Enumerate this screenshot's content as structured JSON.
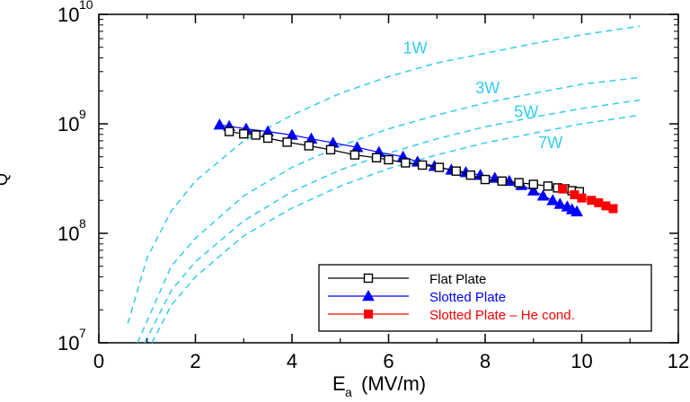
{
  "chart_data": {
    "type": "scatter",
    "title": "",
    "xlabel": "E",
    "xlabel_sub": "a",
    "xlabel_units": "(MV/m)",
    "ylabel": "Q",
    "xlim": [
      0,
      12
    ],
    "ylim_log10": [
      7,
      10
    ],
    "y_scale": "log",
    "x_ticks": [
      0,
      2,
      4,
      6,
      8,
      10,
      12
    ],
    "x_tick_labels": [
      "0",
      "2",
      "4",
      "6",
      "8",
      "10",
      "12"
    ],
    "y_ticks_log10": [
      7,
      8,
      9,
      10
    ],
    "y_tick_base": "10",
    "y_tick_exponents": [
      "7",
      "8",
      "9",
      "10"
    ],
    "grid": false,
    "legend_position": "bottom-right",
    "series": [
      {
        "name": "Flat Plate",
        "color": "#000000",
        "marker": "open-square",
        "x": [
          2.7,
          3.0,
          3.25,
          3.5,
          3.9,
          4.35,
          4.8,
          5.3,
          5.75,
          6.0,
          6.35,
          6.7,
          7.05,
          7.4,
          7.7,
          8.0,
          8.35,
          8.7,
          9.0,
          9.3,
          9.5,
          9.65,
          9.8,
          9.95
        ],
        "y": [
          850000000.0,
          810000000.0,
          790000000.0,
          740000000.0,
          680000000.0,
          630000000.0,
          580000000.0,
          520000000.0,
          490000000.0,
          470000000.0,
          440000000.0,
          420000000.0,
          400000000.0,
          370000000.0,
          340000000.0,
          310000000.0,
          300000000.0,
          290000000.0,
          280000000.0,
          270000000.0,
          260000000.0,
          255000000.0,
          245000000.0,
          240000000.0
        ]
      },
      {
        "name": "Slotted Plate",
        "color": "#0000ff",
        "marker": "filled-triangle",
        "x": [
          2.5,
          2.7,
          3.05,
          3.5,
          4.0,
          4.4,
          4.85,
          5.35,
          5.8,
          6.3,
          6.6,
          6.95,
          7.3,
          7.6,
          7.9,
          8.2,
          8.5,
          8.75,
          9.0,
          9.2,
          9.4,
          9.55,
          9.7,
          9.8,
          9.9
        ],
        "y": [
          980000000.0,
          950000000.0,
          900000000.0,
          850000000.0,
          790000000.0,
          730000000.0,
          670000000.0,
          610000000.0,
          550000000.0,
          500000000.0,
          450000000.0,
          410000000.0,
          380000000.0,
          360000000.0,
          340000000.0,
          320000000.0,
          300000000.0,
          275000000.0,
          245000000.0,
          220000000.0,
          200000000.0,
          185000000.0,
          175000000.0,
          165000000.0,
          158000000.0
        ]
      },
      {
        "name": "Slotted Plate – He cond.",
        "color": "#ff0000",
        "marker": "filled-square",
        "x": [
          9.6,
          9.85,
          10.0,
          10.2,
          10.35,
          10.5,
          10.65
        ],
        "y": [
          255000000.0,
          225000000.0,
          210000000.0,
          200000000.0,
          190000000.0,
          178000000.0,
          168000000.0
        ]
      }
    ],
    "annotations": [
      {
        "text": "1W",
        "x": 6.3,
        "y": 4400000000.0
      },
      {
        "text": "3W",
        "x": 7.8,
        "y": 1900000000.0
      },
      {
        "text": "5W",
        "x": 8.6,
        "y": 1150000000.0
      },
      {
        "text": "7W",
        "x": 9.1,
        "y": 600000000.0
      }
    ],
    "reference_curves": {
      "color": "#33ccee",
      "style": "dashed",
      "note": "constant-power curves Q ∝ Eacc^2 / P",
      "curves": [
        {
          "label": "1W",
          "points": [
            [
              0.6,
              15000000.0
            ],
            [
              1.0,
              60000000.0
            ],
            [
              1.5,
              160000000.0
            ],
            [
              2.0,
              300000000.0
            ],
            [
              3.0,
              700000000.0
            ],
            [
              4.0,
              1200000000.0
            ],
            [
              5.0,
              1900000000.0
            ],
            [
              6.0,
              2700000000.0
            ],
            [
              7.0,
              3600000000.0
            ],
            [
              8.0,
              4400000000.0
            ],
            [
              9.0,
              5400000000.0
            ],
            [
              10.0,
              6500000000.0
            ],
            [
              11.2,
              7800000000.0
            ]
          ]
        },
        {
          "label": "3W",
          "points": [
            [
              0.8,
              10000000.0
            ],
            [
              1.5,
              50000000.0
            ],
            [
              2.0,
              90000000.0
            ],
            [
              3.0,
              220000000.0
            ],
            [
              4.0,
              400000000.0
            ],
            [
              5.0,
              630000000.0
            ],
            [
              6.0,
              900000000.0
            ],
            [
              7.0,
              1200000000.0
            ],
            [
              8.0,
              1550000000.0
            ],
            [
              9.0,
              1900000000.0
            ],
            [
              10.0,
              2300000000.0
            ],
            [
              11.2,
              2650000000.0
            ]
          ]
        },
        {
          "label": "5W",
          "points": [
            [
              0.95,
              10000000.0
            ],
            [
              1.5,
              30000000.0
            ],
            [
              2.0,
              55000000.0
            ],
            [
              3.0,
              130000000.0
            ],
            [
              4.0,
              240000000.0
            ],
            [
              5.0,
              380000000.0
            ],
            [
              6.0,
              540000000.0
            ],
            [
              7.0,
              730000000.0
            ],
            [
              8.0,
              940000000.0
            ],
            [
              9.0,
              1150000000.0
            ],
            [
              10.0,
              1380000000.0
            ],
            [
              11.2,
              1650000000.0
            ]
          ]
        },
        {
          "label": "7W",
          "points": [
            [
              1.1,
              10000000.0
            ],
            [
              1.5,
              22000000.0
            ],
            [
              2.0,
              40000000.0
            ],
            [
              3.0,
              95000000.0
            ],
            [
              4.0,
              170000000.0
            ],
            [
              5.0,
              270000000.0
            ],
            [
              6.0,
              390000000.0
            ],
            [
              7.0,
              520000000.0
            ],
            [
              8.0,
              670000000.0
            ],
            [
              9.0,
              820000000.0
            ],
            [
              10.0,
              1000000000.0
            ],
            [
              11.2,
              1200000000.0
            ]
          ]
        }
      ]
    }
  }
}
